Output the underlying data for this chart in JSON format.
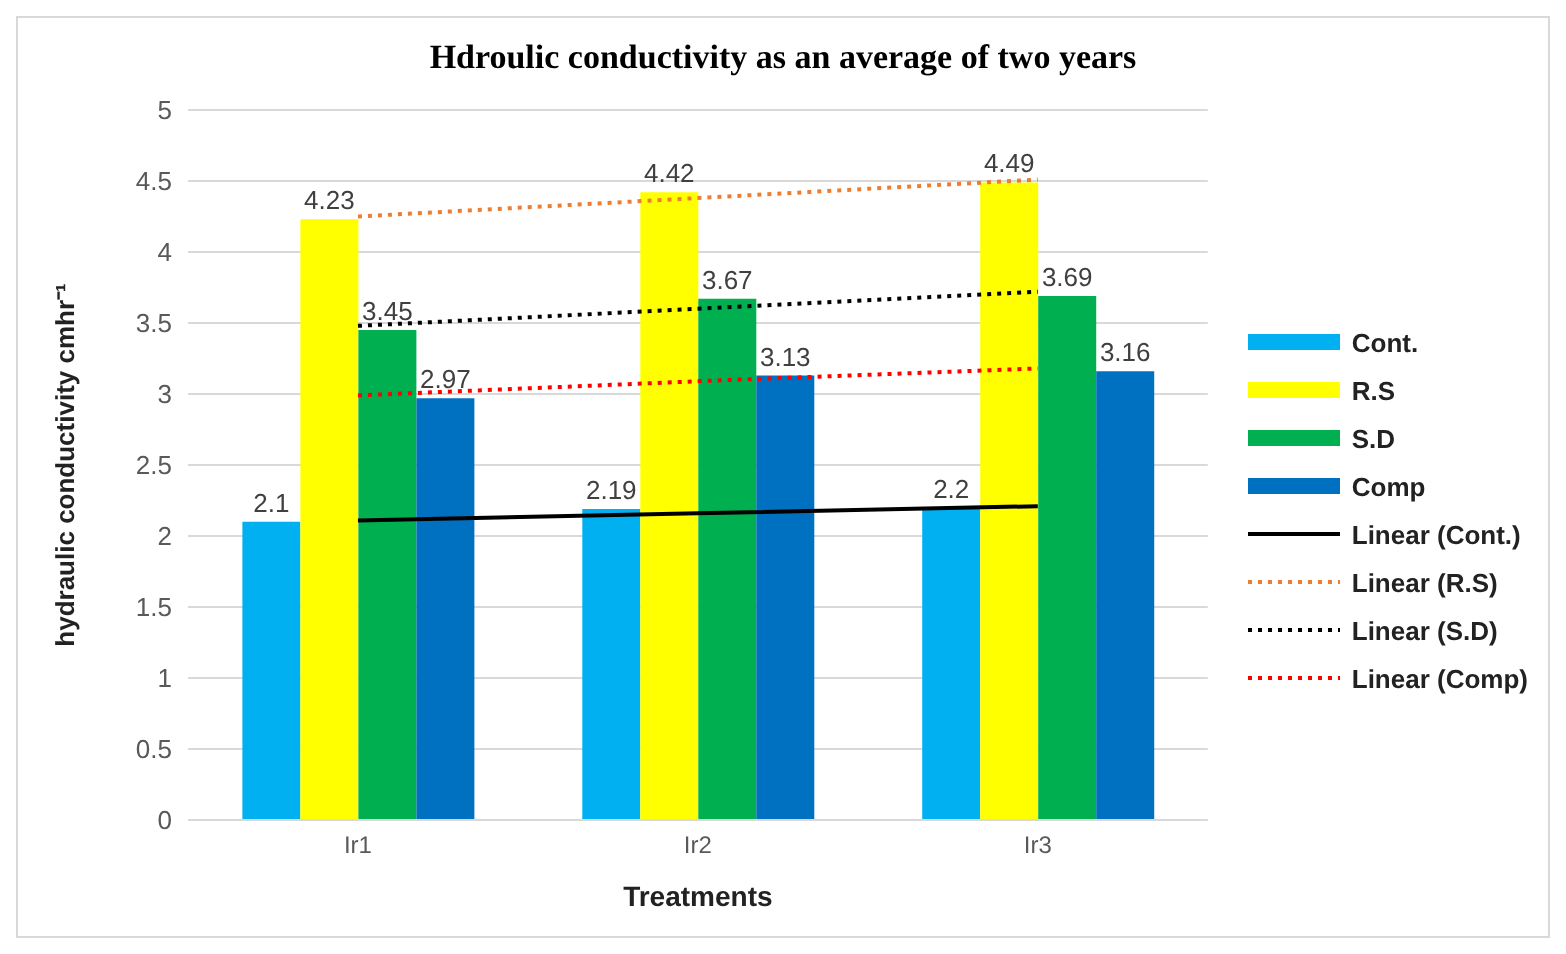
{
  "chart_data": {
    "type": "bar",
    "title": "Hdroulic conductivity  as an average of two years",
    "xlabel": "Treatments",
    "ylabel": "hydraulic conductivity cmhr⁻¹",
    "categories": [
      "Ir1",
      "Ir2",
      "Ir3"
    ],
    "series": [
      {
        "name": "Cont.",
        "color": "#00b0f0",
        "values": [
          2.1,
          2.19,
          2.2
        ],
        "value_labels": [
          "2.1",
          "2.19",
          "2.2"
        ]
      },
      {
        "name": "R.S",
        "color": "#ffff00",
        "values": [
          4.23,
          4.42,
          4.49
        ],
        "value_labels": [
          "4.23",
          "4.42",
          "4.49"
        ]
      },
      {
        "name": "S.D",
        "color": "#00b050",
        "values": [
          3.45,
          3.67,
          3.69
        ],
        "value_labels": [
          "3.45",
          "3.67",
          "3.69"
        ]
      },
      {
        "name": "Comp",
        "color": "#0070c0",
        "values": [
          2.97,
          3.13,
          3.16
        ],
        "value_labels": [
          "2.97",
          "3.13",
          "3.16"
        ]
      },
      {
        "name": "Linear (Cont.)",
        "type": "line",
        "color": "#000000",
        "line_style": "solid",
        "values": [
          2.11,
          2.16,
          2.21
        ]
      },
      {
        "name": "Linear (R.S)",
        "type": "line",
        "color": "#ed7d31",
        "line_style": "dotted",
        "values": [
          4.25,
          4.38,
          4.51
        ]
      },
      {
        "name": "Linear (S.D)",
        "type": "line",
        "color": "#000000",
        "line_style": "dotted",
        "values": [
          3.48,
          3.6,
          3.72
        ]
      },
      {
        "name": "Linear (Comp)",
        "type": "line",
        "color": "#ff0000",
        "line_style": "dotted",
        "values": [
          2.99,
          3.09,
          3.18
        ]
      }
    ],
    "ylim": [
      0,
      5
    ],
    "yticks": [
      0,
      0.5,
      1,
      1.5,
      2,
      2.5,
      3,
      3.5,
      4,
      4.5,
      5
    ],
    "grid": "y",
    "legend": "right",
    "marker": "none"
  }
}
